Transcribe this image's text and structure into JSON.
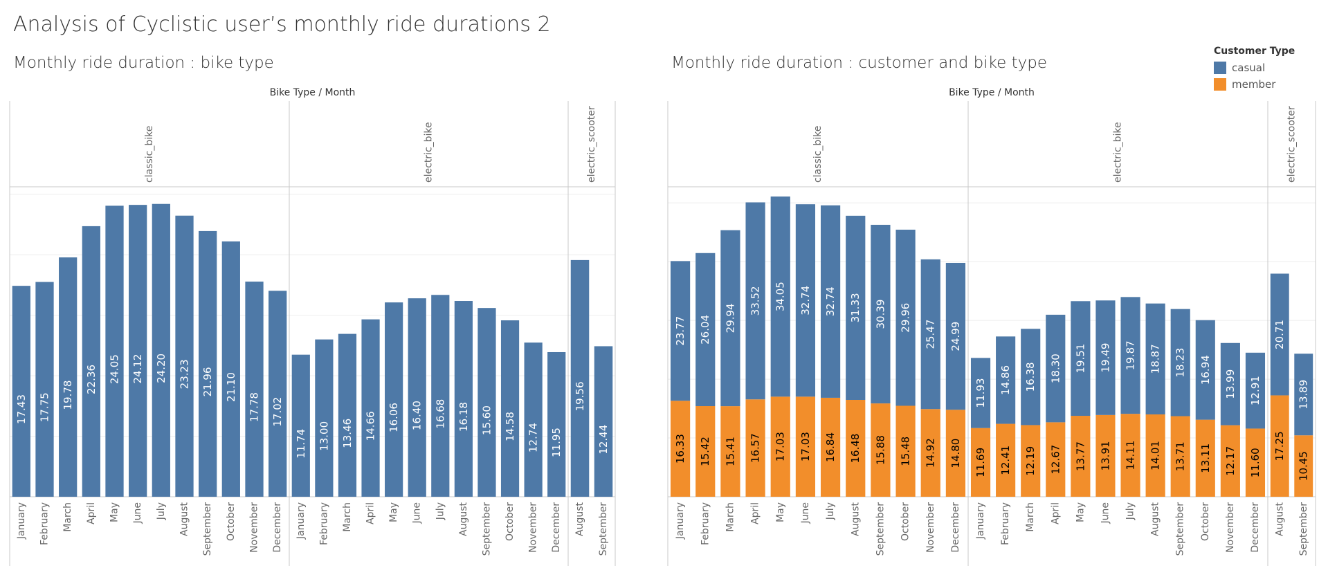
{
  "dashboard": {
    "title": "Analysis of Cyclistic user’s monthly ride durations 2"
  },
  "legend": {
    "title": "Customer Type",
    "items": [
      {
        "label": "casual",
        "color": "#4e79a7"
      },
      {
        "label": "member",
        "color": "#f28e2b"
      }
    ]
  },
  "colors": {
    "bar": "#4e79a7",
    "casual": "#4e79a7",
    "member": "#f28e2b",
    "label_on_blue": "#ffffff",
    "label_on_orange": "#000000",
    "axis_text": "#666666",
    "grid": "#eeeeee",
    "divider": "#c8c8c8"
  },
  "chart_data": [
    {
      "type": "bar",
      "title": "Monthly ride duration : bike type",
      "column_header": "Bike Type  /  Month",
      "groups": [
        {
          "name": "classic_bike",
          "categories": [
            "January",
            "February",
            "March",
            "April",
            "May",
            "June",
            "July",
            "August",
            "September",
            "October",
            "November",
            "December"
          ],
          "values": [
            17.43,
            17.75,
            19.78,
            22.36,
            24.05,
            24.12,
            24.2,
            23.23,
            21.96,
            21.1,
            17.78,
            17.02
          ]
        },
        {
          "name": "electric_bike",
          "categories": [
            "January",
            "February",
            "March",
            "April",
            "May",
            "June",
            "July",
            "August",
            "September",
            "October",
            "November",
            "December"
          ],
          "values": [
            11.74,
            13.0,
            13.46,
            14.66,
            16.06,
            16.4,
            16.68,
            16.18,
            15.6,
            14.58,
            12.74,
            11.95
          ]
        },
        {
          "name": "electric_scooter",
          "categories": [
            "August",
            "September"
          ],
          "values": [
            19.56,
            12.44
          ]
        }
      ],
      "ylim": [
        0,
        25.5
      ],
      "grid": true
    },
    {
      "type": "bar",
      "stacked": true,
      "title": "Monthly ride duration : customer and bike type",
      "column_header": "Bike Type  /  Month",
      "groups": [
        {
          "name": "classic_bike",
          "categories": [
            "January",
            "February",
            "March",
            "April",
            "May",
            "June",
            "July",
            "August",
            "September",
            "October",
            "November",
            "December"
          ],
          "series": [
            {
              "name": "member",
              "values": [
                16.33,
                15.42,
                15.41,
                16.57,
                17.03,
                17.03,
                16.84,
                16.48,
                15.88,
                15.48,
                14.92,
                14.8
              ]
            },
            {
              "name": "casual",
              "values": [
                23.77,
                26.04,
                29.94,
                33.52,
                34.05,
                32.74,
                32.74,
                31.33,
                30.39,
                29.96,
                25.47,
                24.99
              ]
            }
          ]
        },
        {
          "name": "electric_bike",
          "categories": [
            "January",
            "February",
            "March",
            "April",
            "May",
            "June",
            "July",
            "August",
            "September",
            "October",
            "November",
            "December"
          ],
          "series": [
            {
              "name": "member",
              "values": [
                11.69,
                12.41,
                12.19,
                12.67,
                13.77,
                13.91,
                14.11,
                14.01,
                13.71,
                13.11,
                12.17,
                11.6
              ]
            },
            {
              "name": "casual",
              "values": [
                11.93,
                14.86,
                16.38,
                18.3,
                19.51,
                19.49,
                19.87,
                18.87,
                18.23,
                16.94,
                13.99,
                12.91
              ]
            }
          ]
        },
        {
          "name": "electric_scooter",
          "categories": [
            "August",
            "September"
          ],
          "series": [
            {
              "name": "member",
              "values": [
                17.25,
                10.45
              ]
            },
            {
              "name": "casual",
              "values": [
                20.71,
                13.89
              ]
            }
          ]
        }
      ],
      "ylim": [
        0,
        52.5
      ],
      "grid": true
    }
  ]
}
